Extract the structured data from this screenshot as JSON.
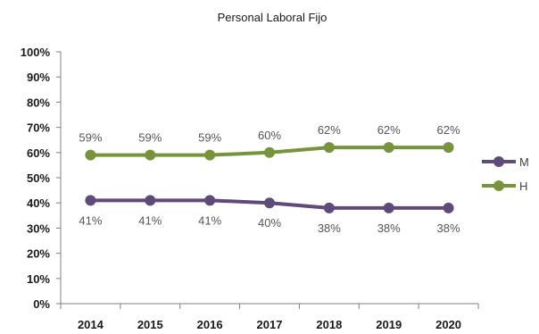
{
  "chart_data": {
    "type": "line",
    "title": "Personal Laboral Fijo",
    "xlabel": "",
    "ylabel": "",
    "categories": [
      "2014",
      "2015",
      "2016",
      "2017",
      "2018",
      "2019",
      "2020"
    ],
    "ylim": [
      0,
      100
    ],
    "yticks": [
      "0%",
      "10%",
      "20%",
      "30%",
      "40%",
      "50%",
      "60%",
      "70%",
      "80%",
      "90%",
      "100%"
    ],
    "grid": false,
    "legend_position": "right",
    "series": [
      {
        "name": "M",
        "color": "#604a7b",
        "values": [
          41,
          41,
          41,
          40,
          38,
          38,
          38
        ],
        "labels": [
          "41%",
          "41%",
          "41%",
          "40%",
          "38%",
          "38%",
          "38%"
        ],
        "label_position": "below"
      },
      {
        "name": "H",
        "color": "#77933c",
        "values": [
          59,
          59,
          59,
          60,
          62,
          62,
          62
        ],
        "labels": [
          "59%",
          "59%",
          "59%",
          "60%",
          "62%",
          "62%",
          "62%"
        ],
        "label_position": "above"
      }
    ]
  }
}
